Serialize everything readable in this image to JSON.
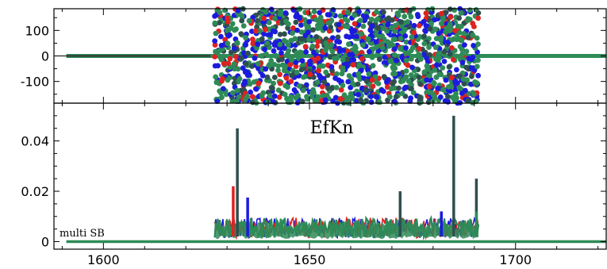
{
  "chart_data": [
    {
      "type": "scatter",
      "panel": "top",
      "xlim": [
        1588,
        1722
      ],
      "ylim": [
        -185,
        185
      ],
      "yticks": [
        100,
        0,
        -100
      ],
      "ytick_labels": [
        "100",
        "0",
        "-100"
      ],
      "dense_range": [
        1627,
        1691
      ],
      "flat_value": 0,
      "series": [
        {
          "color": "#dd2222",
          "values_abs_max": 185
        },
        {
          "color": "#1b1bdd",
          "values_abs_max": 185
        },
        {
          "color": "#2e8b57",
          "values_abs_max": 185
        }
      ],
      "grid": false
    },
    {
      "type": "line",
      "panel": "bottom",
      "title": "EfKn",
      "annotation": "multi SB",
      "xlim": [
        1588,
        1722
      ],
      "ylim": [
        -0.003,
        0.055
      ],
      "xticks": [
        1600,
        1650,
        1700
      ],
      "xtick_labels": [
        "1600",
        "1650",
        "1700"
      ],
      "yticks": [
        0.04,
        0.02,
        0
      ],
      "ytick_labels": [
        "0.04",
        "0.02",
        "0"
      ],
      "dense_range": [
        1627,
        1691
      ],
      "baseline_level": 0.0055,
      "spikes": [
        {
          "x": 1631.5,
          "y": 0.022,
          "color": "#dd2222"
        },
        {
          "x": 1632.5,
          "y": 0.045,
          "color": "#2f4f4f"
        },
        {
          "x": 1635,
          "y": 0.0175,
          "color": "#1b1bdd"
        },
        {
          "x": 1672,
          "y": 0.02,
          "color": "#2f4f4f"
        },
        {
          "x": 1682,
          "y": 0.012,
          "color": "#1b1bdd"
        },
        {
          "x": 1685,
          "y": 0.05,
          "color": "#2f4f4f"
        },
        {
          "x": 1690.5,
          "y": 0.025,
          "color": "#2f4f4f"
        }
      ],
      "series": [
        {
          "color": "#dd2222"
        },
        {
          "color": "#1b1bdd"
        },
        {
          "color": "#2e8b57"
        }
      ],
      "grid": false
    }
  ]
}
